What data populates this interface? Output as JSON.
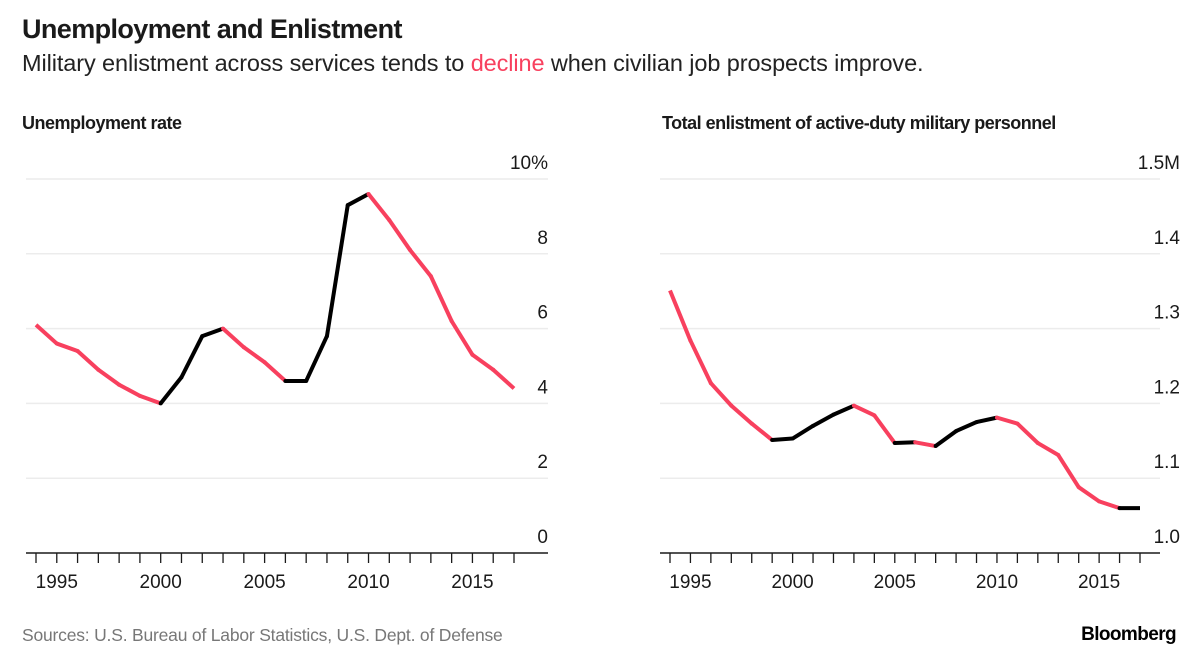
{
  "header": {
    "title": "Unemployment and Enlistment",
    "subtitle_before": "Military enlistment across services tends to ",
    "subtitle_accent": "decline",
    "subtitle_after": " when civilian job prospects improve."
  },
  "colors": {
    "decline": "#f8405e",
    "rise": "#000000",
    "grid": "#ececec",
    "axis": "#1a1a1a",
    "text": "#1a1a1a",
    "muted": "#777777"
  },
  "footer": {
    "sources": "Sources: U.S. Bureau of Labor Statistics, U.S. Dept. of Defense",
    "brand": "Bloomberg"
  },
  "chart_data": [
    {
      "id": "unemployment",
      "type": "line",
      "title": "Unemployment rate",
      "xlabel": "",
      "ylabel": "",
      "x": [
        1994,
        1995,
        1996,
        1997,
        1998,
        1999,
        2000,
        2001,
        2002,
        2003,
        2004,
        2005,
        2006,
        2007,
        2008,
        2009,
        2010,
        2011,
        2012,
        2013,
        2014,
        2015,
        2016,
        2017
      ],
      "series": [
        {
          "name": "Unemployment rate (%)",
          "values": [
            6.1,
            5.6,
            5.4,
            4.9,
            4.5,
            4.2,
            4.0,
            4.7,
            5.8,
            6.0,
            5.5,
            5.1,
            4.6,
            4.6,
            5.8,
            9.3,
            9.6,
            8.9,
            8.1,
            7.4,
            6.2,
            5.3,
            4.9,
            4.4
          ]
        }
      ],
      "segment_colors": [
        "decline",
        "decline",
        "decline",
        "decline",
        "decline",
        "decline",
        "rise",
        "rise",
        "rise",
        "decline",
        "decline",
        "decline",
        "rise",
        "rise",
        "rise",
        "rise",
        "decline",
        "decline",
        "decline",
        "decline",
        "decline",
        "decline",
        "decline"
      ],
      "ylim": [
        0,
        10
      ],
      "yticks": [
        0,
        2,
        4,
        6,
        8,
        10
      ],
      "ytick_labels": [
        "0",
        "2",
        "4",
        "6",
        "8",
        "10%"
      ],
      "xlim": [
        1994,
        2017
      ],
      "xticks_labeled": [
        1995,
        2000,
        2005,
        2010,
        2015
      ],
      "xtick_labels": [
        "1995",
        "2000",
        "2005",
        "2010",
        "2015"
      ],
      "grid": true,
      "y_axis_side": "right"
    },
    {
      "id": "enlistment",
      "type": "line",
      "title": "Total enlistment of active-duty military personnel",
      "xlabel": "",
      "ylabel": "",
      "x": [
        1994,
        1995,
        1996,
        1997,
        1998,
        1999,
        2000,
        2001,
        2002,
        2003,
        2004,
        2005,
        2006,
        2007,
        2008,
        2009,
        2010,
        2011,
        2012,
        2013,
        2014,
        2015,
        2016,
        2017
      ],
      "series": [
        {
          "name": "Active-duty personnel (millions)",
          "values": [
            1.351,
            1.284,
            1.227,
            1.197,
            1.173,
            1.151,
            1.153,
            1.17,
            1.185,
            1.197,
            1.184,
            1.147,
            1.148,
            1.143,
            1.163,
            1.175,
            1.181,
            1.173,
            1.147,
            1.131,
            1.088,
            1.069,
            1.06,
            1.06
          ]
        }
      ],
      "segment_colors": [
        "decline",
        "decline",
        "decline",
        "decline",
        "decline",
        "rise",
        "rise",
        "rise",
        "rise",
        "decline",
        "decline",
        "rise",
        "decline",
        "rise",
        "rise",
        "rise",
        "decline",
        "decline",
        "decline",
        "decline",
        "decline",
        "decline",
        "rise"
      ],
      "ylim": [
        1.0,
        1.5
      ],
      "yticks": [
        1.0,
        1.1,
        1.2,
        1.3,
        1.4,
        1.5
      ],
      "ytick_labels": [
        "1.0",
        "1.1",
        "1.2",
        "1.3",
        "1.4",
        "1.5M"
      ],
      "xlim": [
        1994,
        2017
      ],
      "xticks_labeled": [
        1995,
        2000,
        2005,
        2010,
        2015
      ],
      "xtick_labels": [
        "1995",
        "2000",
        "2005",
        "2010",
        "2015"
      ],
      "grid": true,
      "y_axis_side": "right"
    }
  ]
}
